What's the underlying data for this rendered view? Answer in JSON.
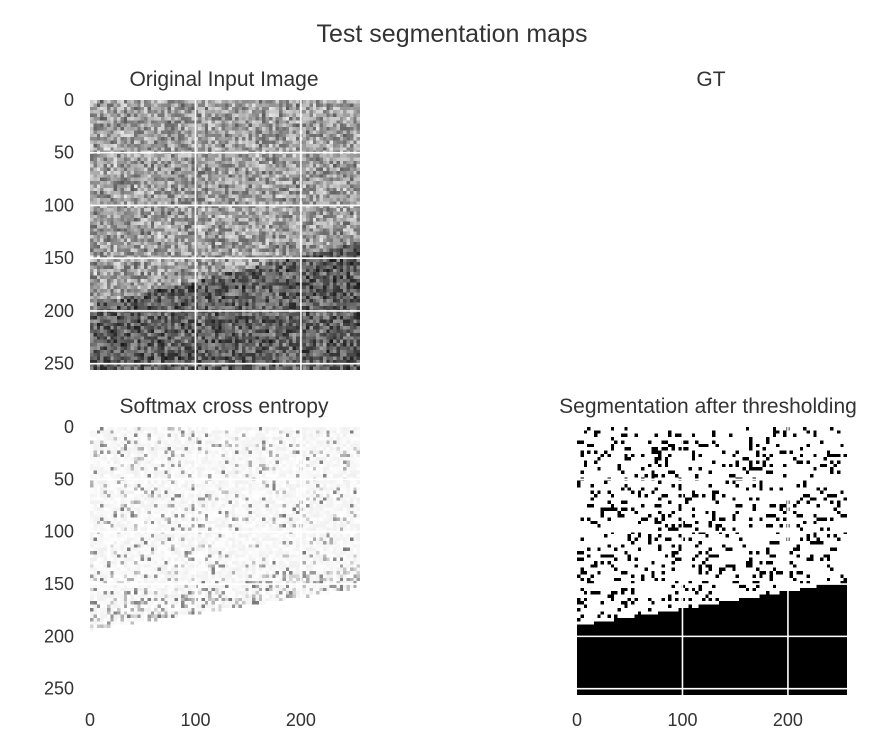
{
  "chart_data": {
    "type": "heatmap",
    "title": "Test segmentation maps",
    "colormap": "grayscale",
    "grid": true,
    "grid_color": "#ffffff",
    "image_size": [
      256,
      256
    ],
    "panels": [
      {
        "id": "original",
        "title": "Original Input Image",
        "has_image": true,
        "content": "noisy grayscale texture; darker region below a boundary rising from y=195 at x=0 to y=135 at x=255",
        "boundary": {
          "x": [
            0,
            255
          ],
          "y": [
            195,
            135
          ]
        },
        "yticks": [
          0,
          50,
          100,
          150,
          200,
          250
        ],
        "xticks": []
      },
      {
        "id": "gt",
        "title": "GT",
        "has_image": false,
        "yticks": [],
        "xticks": []
      },
      {
        "id": "softmax",
        "title": "Softmax cross entropy",
        "has_image": true,
        "content": "mostly white map with faint dark speckles, denser near boundary from y=190 at x=0 to y=150 at x=255",
        "boundary": {
          "x": [
            0,
            255
          ],
          "y": [
            190,
            150
          ]
        },
        "yticks": [
          0,
          50,
          100,
          150,
          200,
          250
        ],
        "xticks": [
          0,
          100,
          200
        ]
      },
      {
        "id": "threshold",
        "title": "Segmentation after thresholding",
        "has_image": true,
        "content": "binary map: black speckles on white above boundary, solid black below boundary from y=190 at x=0 to y=148 at x=255",
        "boundary": {
          "x": [
            0,
            255
          ],
          "y": [
            190,
            148
          ]
        },
        "yticks": [],
        "xticks": [
          0,
          100,
          200
        ]
      }
    ]
  }
}
